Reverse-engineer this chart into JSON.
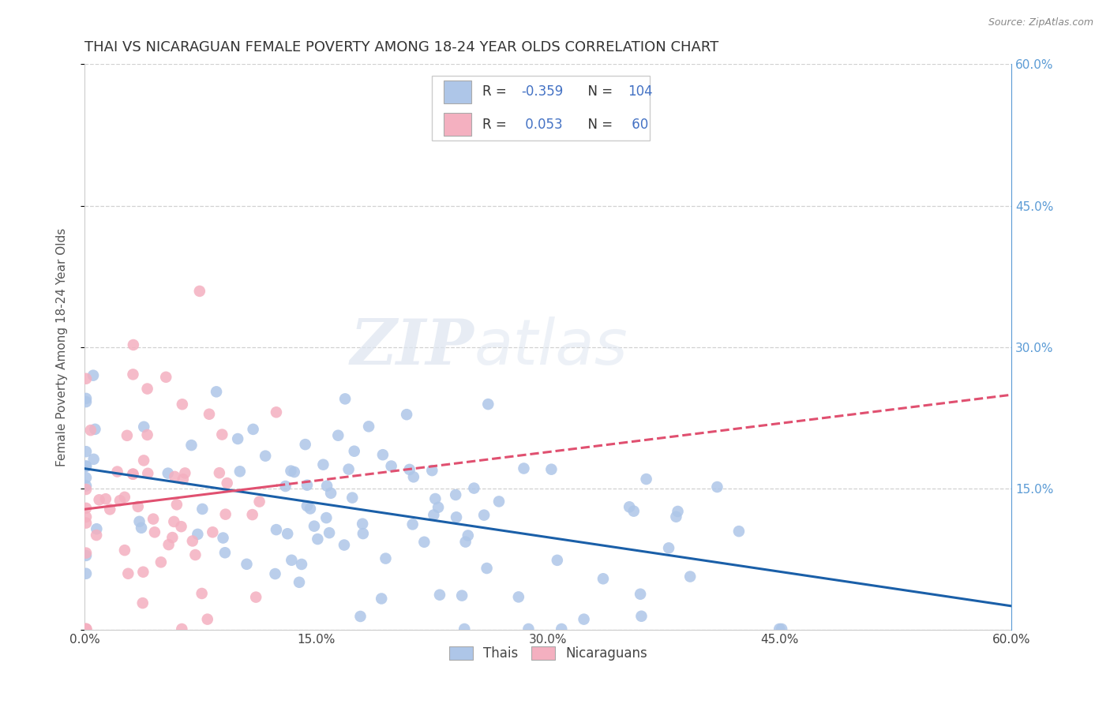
{
  "title": "THAI VS NICARAGUAN FEMALE POVERTY AMONG 18-24 YEAR OLDS CORRELATION CHART",
  "source": "Source: ZipAtlas.com",
  "ylabel": "Female Poverty Among 18-24 Year Olds",
  "xlim": [
    0.0,
    0.6
  ],
  "ylim": [
    0.0,
    0.6
  ],
  "xtick_vals": [
    0.0,
    0.15,
    0.3,
    0.45,
    0.6
  ],
  "xtick_labels": [
    "0.0%",
    "15.0%",
    "30.0%",
    "45.0%",
    "60.0%"
  ],
  "ytick_vals": [
    0.0,
    0.15,
    0.3,
    0.45,
    0.6
  ],
  "ytick_labels_right": [
    "",
    "15.0%",
    "30.0%",
    "45.0%",
    "60.0%"
  ],
  "legend_label1": "Thais",
  "legend_label2": "Nicaraguans",
  "thai_color": "#aec6e8",
  "thai_line_color": "#1a5fa8",
  "nica_color": "#f4b0c0",
  "nica_line_color": "#e05070",
  "R_thai": -0.359,
  "N_thai": 104,
  "R_nica": 0.053,
  "N_nica": 60,
  "watermark_zip": "ZIP",
  "watermark_atlas": "atlas",
  "background_color": "#ffffff",
  "grid_color": "#cccccc",
  "title_color": "#333333",
  "right_axis_color": "#5b9bd5",
  "legend_R_color": "#4472c4",
  "legend_N_color": "#4472c4"
}
